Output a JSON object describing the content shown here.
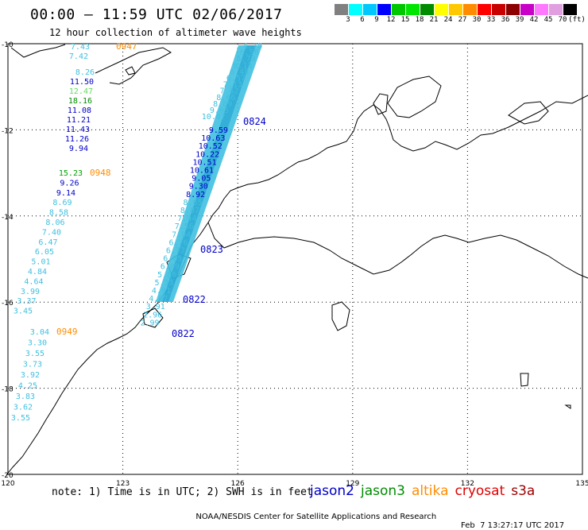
{
  "header": {
    "title": "00:00 – 11:59 UTC 02/06/2017",
    "subtitle": "12 hour collection of altimeter wave heights"
  },
  "legend": {
    "colors": [
      "#808080",
      "#00ffff",
      "#00c8ff",
      "#0000ff",
      "#00c800",
      "#00e600",
      "#008c00",
      "#ffff00",
      "#ffc800",
      "#ff8c00",
      "#ff0000",
      "#c80000",
      "#8c0000",
      "#c800c8",
      "#ff78ff",
      "#e0a0e0",
      "#000000"
    ],
    "labels": [
      "3",
      "6",
      "9",
      "12",
      "15",
      "18",
      "21",
      "24",
      "27",
      "30",
      "33",
      "36",
      "39",
      "42",
      "45",
      "70",
      "(ft)"
    ]
  },
  "map": {
    "lat_ticks": [
      "-10",
      "-12",
      "-14",
      "-16",
      "-18",
      "-20"
    ],
    "lon_ticks": [
      "120",
      "123",
      "126",
      "129",
      "132",
      "135"
    ],
    "passes": [
      {
        "satellite": "altika",
        "time": "0947",
        "color": "#ff8c00",
        "values": [
          {
            "v": "7.43",
            "c": "#40c0e0"
          },
          {
            "v": "7.42",
            "c": "#40c0e0"
          },
          {
            "v": "8.26",
            "c": "#40c0e0"
          },
          {
            "v": "11.50",
            "c": "#0000c8"
          },
          {
            "v": "12.47",
            "c": "#60e060"
          },
          {
            "v": "18.16",
            "c": "#008c00"
          },
          {
            "v": "11.08",
            "c": "#0000c8"
          },
          {
            "v": "11.21",
            "c": "#0000c8"
          },
          {
            "v": "11.43",
            "c": "#0000c8"
          },
          {
            "v": "11.26",
            "c": "#0000c8"
          },
          {
            "v": "9.94",
            "c": "#0000c8"
          }
        ]
      },
      {
        "satellite": "altika",
        "time": "0948",
        "color": "#ff8c00",
        "values": [
          {
            "v": "15.23",
            "c": "#00a000"
          },
          {
            "v": "9.26",
            "c": "#0000c8"
          },
          {
            "v": "9.14",
            "c": "#0000c8"
          },
          {
            "v": "8.69",
            "c": "#40c0e0"
          },
          {
            "v": "8.58",
            "c": "#40c0e0"
          },
          {
            "v": "8.06",
            "c": "#40c0e0"
          },
          {
            "v": "7.40",
            "c": "#40c0e0"
          },
          {
            "v": "6.47",
            "c": "#40c0e0"
          },
          {
            "v": "6.05",
            "c": "#40c0e0"
          },
          {
            "v": "5.01",
            "c": "#40c0e0"
          },
          {
            "v": "4.84",
            "c": "#40c0e0"
          },
          {
            "v": "4.64",
            "c": "#40c0e0"
          },
          {
            "v": "3.99",
            "c": "#40c0e0"
          },
          {
            "v": "3.37",
            "c": "#40c0e0"
          },
          {
            "v": "3.45",
            "c": "#40c0e0"
          }
        ]
      },
      {
        "satellite": "altika",
        "time": "0949",
        "color": "#ff8c00",
        "values": [
          {
            "v": "3.04",
            "c": "#40c0e0"
          },
          {
            "v": "3.30",
            "c": "#40c0e0"
          },
          {
            "v": "3.55",
            "c": "#40c0e0"
          },
          {
            "v": "3.73",
            "c": "#40c0e0"
          },
          {
            "v": "3.92",
            "c": "#40c0e0"
          },
          {
            "v": "4.25",
            "c": "#40c0e0"
          },
          {
            "v": "3.83",
            "c": "#40c0e0"
          },
          {
            "v": "3.62",
            "c": "#40c0e0"
          },
          {
            "v": "3.55",
            "c": "#40c0e0"
          }
        ]
      },
      {
        "satellite": "jason2",
        "times": [
          "0824",
          "0823",
          "0822",
          "0822"
        ],
        "color": "#0000c8",
        "values_top": [
          "4.78",
          "6.56",
          "5.79",
          "6.13",
          "6.48",
          "6.57",
          "7.13",
          "7.62",
          "8.66",
          "8.89",
          "9.05",
          "10.07"
        ],
        "values_mid": [
          "9.59",
          "10.63",
          "10.52",
          "10.22",
          "10.51",
          "10.61",
          "9.05",
          "9.30",
          "8.92",
          "8.65",
          "8.07",
          "7.44",
          "7.56",
          "7.94",
          "6.76",
          "6.77",
          "6.05",
          "6.89",
          "5.86",
          "5.33",
          "4.91",
          "4.07",
          "3.91",
          "2.96",
          "2.99"
        ]
      }
    ]
  },
  "footer": {
    "note": "note: 1) Time is in UTC; 2) SWH is in feet",
    "satellites": [
      {
        "name": "jason2",
        "color": "#0000c8"
      },
      {
        "name": "jason3",
        "color": "#008c00"
      },
      {
        "name": "altika",
        "color": "#ff8c00"
      },
      {
        "name": "cryosat",
        "color": "#e00000"
      },
      {
        "name": "s3a",
        "color": "#a00000"
      }
    ],
    "credit": "NOAA/NESDIS Center for Satellite Applications and Research",
    "timestamp": "Feb  7 13:27:17 UTC 2017"
  }
}
